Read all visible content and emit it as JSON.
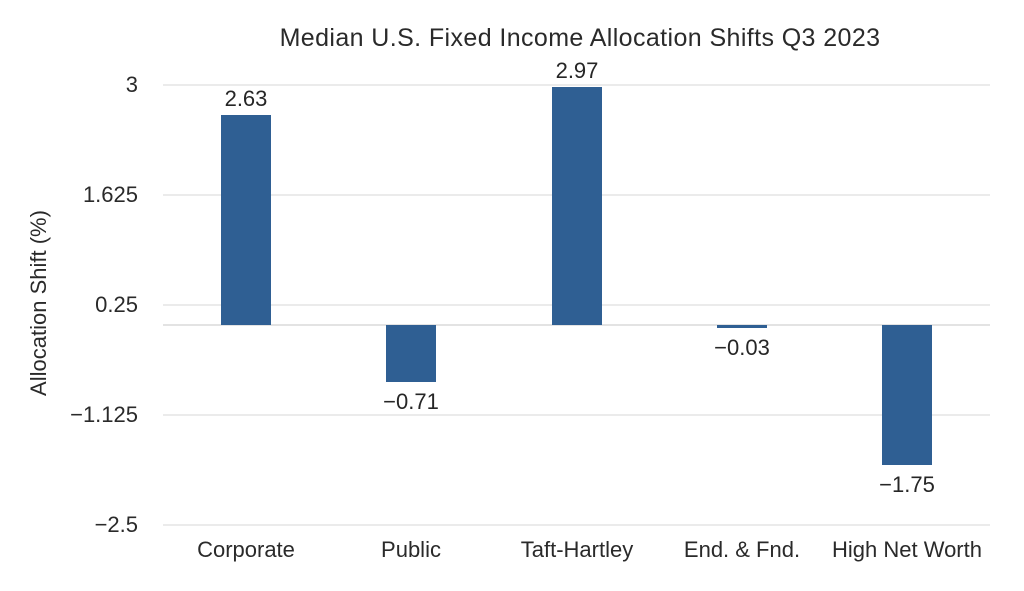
{
  "page": {
    "background_color": "#ffffff"
  },
  "chart_data": {
    "type": "bar",
    "title": "Median U.S. Fixed Income Allocation Shifts Q3 2023",
    "xlabel": "",
    "ylabel": "Allocation Shift (%)",
    "categories": [
      "Corporate",
      "Public",
      "Taft-Hartley",
      "End. & Fnd.",
      "High Net Worth"
    ],
    "values": [
      2.63,
      -0.71,
      2.97,
      -0.03,
      -1.75
    ],
    "value_labels": [
      "2.63",
      "−0.71",
      "2.97",
      "−0.03",
      "−1.75"
    ],
    "yticks": [
      {
        "value": 3,
        "label": "3"
      },
      {
        "value": 1.625,
        "label": "1.625"
      },
      {
        "value": 0.25,
        "label": "0.25"
      },
      {
        "value": -1.125,
        "label": "−1.125"
      },
      {
        "value": -2.5,
        "label": "−2.5"
      }
    ],
    "ylim": [
      -2.5,
      3
    ],
    "grid": true,
    "legend_position": "none",
    "bar_color": "#2f5f93",
    "text_color": "#2a2a2a",
    "grid_color": "#ebebeb",
    "zero_line_color": "#e3e3e3"
  }
}
